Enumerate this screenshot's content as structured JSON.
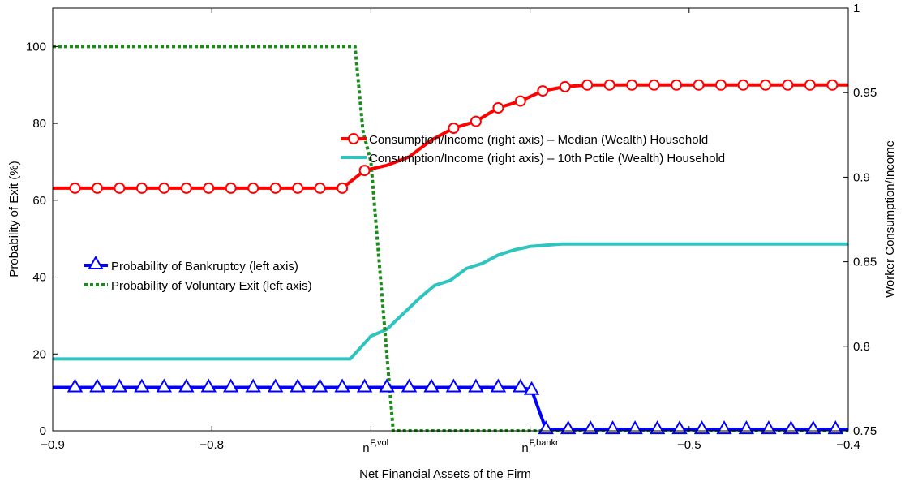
{
  "chart_data": {
    "type": "line",
    "xlabel": "Net Financial Assets of the Firm",
    "ylabel_left": "Probability of Exit (%)",
    "ylabel_right": "Worker Consumption/Income",
    "xlim": [
      -0.9,
      -0.4
    ],
    "ylim_left": [
      0,
      110
    ],
    "ylim_right": [
      0.75,
      1.0
    ],
    "x_ticks": [
      {
        "value": -0.9,
        "label": "−0.9"
      },
      {
        "value": -0.8,
        "label": "−0.8"
      },
      {
        "value": -0.5,
        "label": "−0.5"
      },
      {
        "value": -0.4,
        "label": "−0.4"
      }
    ],
    "x_markers": [
      {
        "value": -0.7,
        "base": "n",
        "sup": "F,vol"
      },
      {
        "value": -0.6,
        "base": "n",
        "sup": "F,bankr"
      }
    ],
    "y_left_ticks": [
      0,
      20,
      40,
      60,
      80,
      100
    ],
    "y_right_ticks": [
      {
        "value": 0.75,
        "label": "0.75"
      },
      {
        "value": 0.8,
        "label": "0.8"
      },
      {
        "value": 0.85,
        "label": "0.85"
      },
      {
        "value": 0.9,
        "label": "0.9"
      },
      {
        "value": 0.95,
        "label": "0.95"
      },
      {
        "value": 1.0,
        "label": "1"
      }
    ],
    "series": [
      {
        "name": "Consumption/Income (right axis) – Median (Wealth) Household",
        "axis": "right",
        "color": "#ff0000",
        "marker": "circle",
        "line": "solid",
        "points": [
          [
            -0.9,
            0.8935
          ],
          [
            -0.886,
            0.8935
          ],
          [
            -0.872,
            0.8935
          ],
          [
            -0.858,
            0.8935
          ],
          [
            -0.844,
            0.8935
          ],
          [
            -0.83,
            0.8935
          ],
          [
            -0.816,
            0.8935
          ],
          [
            -0.802,
            0.8935
          ],
          [
            -0.788,
            0.8935
          ],
          [
            -0.774,
            0.8935
          ],
          [
            -0.76,
            0.8935
          ],
          [
            -0.746,
            0.8935
          ],
          [
            -0.732,
            0.8935
          ],
          [
            -0.718,
            0.8935
          ],
          [
            -0.704,
            0.904
          ],
          [
            -0.69,
            0.907
          ],
          [
            -0.676,
            0.912
          ],
          [
            -0.662,
            0.922
          ],
          [
            -0.648,
            0.929
          ],
          [
            -0.634,
            0.933
          ],
          [
            -0.62,
            0.941
          ],
          [
            -0.606,
            0.945
          ],
          [
            -0.592,
            0.951
          ],
          [
            -0.578,
            0.9535
          ],
          [
            -0.564,
            0.9545
          ],
          [
            -0.55,
            0.9545
          ],
          [
            -0.536,
            0.9545
          ],
          [
            -0.522,
            0.9545
          ],
          [
            -0.508,
            0.9545
          ],
          [
            -0.494,
            0.9545
          ],
          [
            -0.48,
            0.9545
          ],
          [
            -0.466,
            0.9545
          ],
          [
            -0.452,
            0.9545
          ],
          [
            -0.438,
            0.9545
          ],
          [
            -0.424,
            0.9545
          ],
          [
            -0.41,
            0.9545
          ],
          [
            -0.4,
            0.9545
          ]
        ],
        "marker_points": [
          [
            -0.886,
            0.8935
          ],
          [
            -0.872,
            0.8935
          ],
          [
            -0.858,
            0.8935
          ],
          [
            -0.844,
            0.8935
          ],
          [
            -0.83,
            0.8935
          ],
          [
            -0.816,
            0.8935
          ],
          [
            -0.802,
            0.8935
          ],
          [
            -0.788,
            0.8935
          ],
          [
            -0.774,
            0.8935
          ],
          [
            -0.76,
            0.8935
          ],
          [
            -0.746,
            0.8935
          ],
          [
            -0.732,
            0.8935
          ],
          [
            -0.718,
            0.8935
          ],
          [
            -0.704,
            0.904
          ],
          [
            -0.648,
            0.929
          ],
          [
            -0.634,
            0.933
          ],
          [
            -0.62,
            0.941
          ],
          [
            -0.606,
            0.945
          ],
          [
            -0.592,
            0.951
          ],
          [
            -0.578,
            0.9535
          ],
          [
            -0.564,
            0.9545
          ],
          [
            -0.55,
            0.9545
          ],
          [
            -0.536,
            0.9545
          ],
          [
            -0.522,
            0.9545
          ],
          [
            -0.508,
            0.9545
          ],
          [
            -0.494,
            0.9545
          ],
          [
            -0.48,
            0.9545
          ],
          [
            -0.466,
            0.9545
          ],
          [
            -0.452,
            0.9545
          ],
          [
            -0.438,
            0.9545
          ],
          [
            -0.424,
            0.9545
          ],
          [
            -0.41,
            0.9545
          ]
        ]
      },
      {
        "name": "Consumption/Income (right axis) – 10th Pctile (Wealth) Household",
        "axis": "right",
        "color": "#2ec4c0",
        "marker": "none",
        "line": "solid",
        "points": [
          [
            -0.9,
            0.7925
          ],
          [
            -0.713,
            0.7925
          ],
          [
            -0.7,
            0.806
          ],
          [
            -0.69,
            0.81
          ],
          [
            -0.68,
            0.819
          ],
          [
            -0.67,
            0.828
          ],
          [
            -0.66,
            0.836
          ],
          [
            -0.65,
            0.839
          ],
          [
            -0.64,
            0.846
          ],
          [
            -0.63,
            0.849
          ],
          [
            -0.62,
            0.854
          ],
          [
            -0.61,
            0.857
          ],
          [
            -0.6,
            0.859
          ],
          [
            -0.58,
            0.8605
          ],
          [
            -0.55,
            0.8605
          ],
          [
            -0.4,
            0.8605
          ]
        ]
      },
      {
        "name": "Probability of Bankruptcy (left axis)",
        "axis": "left",
        "color": "#0000ff",
        "marker": "triangle",
        "line": "solid",
        "points": [
          [
            -0.9,
            11.3
          ],
          [
            -0.605,
            11.3
          ],
          [
            -0.599,
            10.6
          ],
          [
            -0.59,
            0.4
          ],
          [
            -0.4,
            0.4
          ]
        ],
        "marker_points": [
          [
            -0.886,
            11.3
          ],
          [
            -0.872,
            11.3
          ],
          [
            -0.858,
            11.3
          ],
          [
            -0.844,
            11.3
          ],
          [
            -0.83,
            11.3
          ],
          [
            -0.816,
            11.3
          ],
          [
            -0.802,
            11.3
          ],
          [
            -0.788,
            11.3
          ],
          [
            -0.774,
            11.3
          ],
          [
            -0.76,
            11.3
          ],
          [
            -0.746,
            11.3
          ],
          [
            -0.732,
            11.3
          ],
          [
            -0.718,
            11.3
          ],
          [
            -0.704,
            11.3
          ],
          [
            -0.69,
            11.3
          ],
          [
            -0.676,
            11.3
          ],
          [
            -0.662,
            11.3
          ],
          [
            -0.648,
            11.3
          ],
          [
            -0.634,
            11.3
          ],
          [
            -0.62,
            11.3
          ],
          [
            -0.606,
            11.3
          ],
          [
            -0.599,
            10.6
          ],
          [
            -0.59,
            0.4
          ],
          [
            -0.576,
            0.4
          ],
          [
            -0.562,
            0.4
          ],
          [
            -0.548,
            0.4
          ],
          [
            -0.534,
            0.4
          ],
          [
            -0.52,
            0.4
          ],
          [
            -0.506,
            0.4
          ],
          [
            -0.492,
            0.4
          ],
          [
            -0.478,
            0.4
          ],
          [
            -0.464,
            0.4
          ],
          [
            -0.45,
            0.4
          ],
          [
            -0.436,
            0.4
          ],
          [
            -0.422,
            0.4
          ],
          [
            -0.408,
            0.4
          ]
        ]
      },
      {
        "name": "Probability of Voluntary Exit (left axis)",
        "axis": "left",
        "color": "#1a8c1a",
        "marker": "none",
        "line": "dotted",
        "points": [
          [
            -0.9,
            100
          ],
          [
            -0.71,
            100
          ],
          [
            -0.705,
            78
          ],
          [
            -0.7,
            70
          ],
          [
            -0.696,
            50
          ],
          [
            -0.69,
            20
          ],
          [
            -0.686,
            0
          ],
          [
            -0.4,
            0
          ]
        ]
      }
    ],
    "legend_top": {
      "placement": "top-right",
      "entries": [
        0,
        1
      ]
    },
    "legend_bottom": {
      "placement": "middle-left",
      "entries": [
        2,
        3
      ]
    },
    "grid": false
  }
}
